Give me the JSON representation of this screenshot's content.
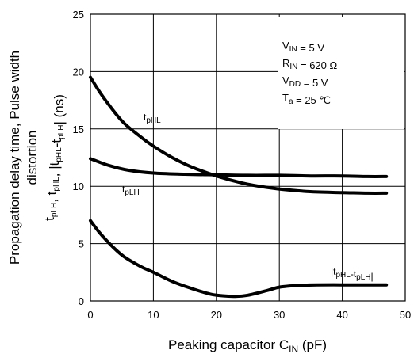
{
  "chart_data": {
    "type": "line",
    "xlabel": {
      "main": "Peaking capacitor  C",
      "sub": "IN",
      "tail": "  (pF)"
    },
    "ylabel": {
      "line1": "Propagation delay time, Pulse width",
      "line2": "distortion",
      "line3": [
        {
          "t": "t",
          "s": "pLH"
        },
        {
          "t": ", t",
          "s": "pHL"
        },
        {
          "t": ", |t",
          "s": "pHL"
        },
        {
          "t": "-t",
          "s": "pLH"
        },
        {
          "t": "|  (ns)",
          "s": ""
        }
      ]
    },
    "xlim": [
      0,
      50
    ],
    "ylim": [
      0,
      25
    ],
    "xticks": [
      "0",
      "10",
      "20",
      "30",
      "40",
      "50"
    ],
    "yticks": [
      "0",
      "5",
      "10",
      "15",
      "20",
      "25"
    ],
    "grid": true,
    "series": [
      {
        "name": "tpHL",
        "x": [
          0,
          2,
          5,
          8,
          10,
          13,
          16,
          20,
          24,
          28,
          32,
          36,
          40,
          44,
          47
        ],
        "y": [
          19.5,
          17.8,
          15.7,
          14.3,
          13.5,
          12.5,
          11.7,
          10.9,
          10.3,
          9.9,
          9.65,
          9.5,
          9.45,
          9.4,
          9.4
        ]
      },
      {
        "name": "tpLH",
        "x": [
          0,
          3,
          6,
          10,
          15,
          20,
          25,
          30,
          35,
          40,
          44,
          47
        ],
        "y": [
          12.4,
          11.8,
          11.4,
          11.15,
          11.05,
          11.0,
          10.95,
          10.95,
          10.9,
          10.9,
          10.85,
          10.85
        ]
      },
      {
        "name": "|tpHL-tpLH|",
        "x": [
          0,
          2,
          5,
          8,
          10,
          13,
          16,
          19,
          21,
          23,
          25,
          28,
          30,
          33,
          36,
          40,
          44,
          47
        ],
        "y": [
          7.0,
          5.6,
          4.0,
          3.0,
          2.5,
          1.7,
          1.1,
          0.6,
          0.45,
          0.4,
          0.5,
          0.9,
          1.2,
          1.35,
          1.4,
          1.4,
          1.4,
          1.4
        ]
      }
    ],
    "annotations": [
      {
        "id": "tphl",
        "t": "t",
        "s": "pHL"
      },
      {
        "id": "tplh",
        "t": "t",
        "s": "pLH"
      },
      {
        "id": "diff",
        "t": "|t",
        "s": "pHL",
        "t2": "-t",
        "s2": "pLH",
        "t3": "|"
      }
    ],
    "conditions": [
      {
        "t": "V",
        "s": "IN",
        "v": " = 5 V"
      },
      {
        "t": "R",
        "s": "IN",
        "v": " = 620 Ω"
      },
      {
        "t": "V",
        "s": "DD",
        "v": " = 5 V"
      },
      {
        "t": "T",
        "s": "a",
        "v": " = 25 ℃"
      }
    ]
  }
}
